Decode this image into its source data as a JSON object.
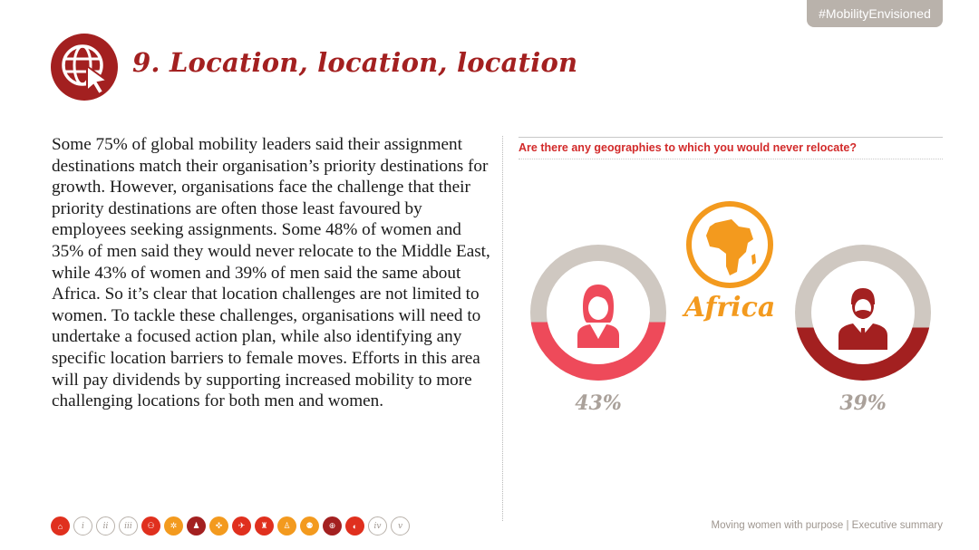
{
  "hashtag": "#MobilityEnvisioned",
  "page": {
    "title": "9. Location, location, location",
    "body": "Some 75% of global mobility leaders said their assignment destinations match their organisation’s priority destinations for growth. However, organisations face the challenge that their priority destinations are often those least favoured by employees seeking assignments. Some 48% of women and 35% of men said they would never relocate to the Middle East, while 43% of women and 39% of men said the same about Africa. So it’s clear that location challenges are not limited to women. To tackle these challenges, organisations will need to undertake a focused action plan, while also identifying any specific location barriers to female moves. Efforts in this area will pay dividends by supporting increased mobility to more challenging locations for both men and women."
  },
  "infographic": {
    "question": "Are there any geographies to which you would never relocate?",
    "region_label": "Africa",
    "women": {
      "percent_label": "43%",
      "value": 0.43,
      "color": "#ee4a5a",
      "track": "#cfc8c1"
    },
    "men": {
      "percent_label": "39%",
      "value": 0.39,
      "color": "#a32020",
      "track": "#cfc8c1"
    }
  },
  "nav": [
    {
      "name": "nav-home-icon",
      "style": "filled",
      "glyph": "⌂"
    },
    {
      "name": "nav-section-i",
      "style": "outline",
      "glyph": "i"
    },
    {
      "name": "nav-section-ii",
      "style": "outline",
      "glyph": "ii"
    },
    {
      "name": "nav-section-iii",
      "style": "outline",
      "glyph": "iii"
    },
    {
      "name": "nav-people-icon",
      "style": "filled",
      "glyph": "⚇"
    },
    {
      "name": "nav-gears-icon",
      "style": "orange",
      "glyph": "✲"
    },
    {
      "name": "nav-person-icon",
      "style": "dark",
      "glyph": "♟"
    },
    {
      "name": "nav-puzzle-icon",
      "style": "orange",
      "glyph": "✜"
    },
    {
      "name": "nav-plane-icon",
      "style": "filled",
      "glyph": "✈"
    },
    {
      "name": "nav-rocket-icon",
      "style": "filled",
      "glyph": "♜"
    },
    {
      "name": "nav-figure-icon",
      "style": "orange",
      "glyph": "♙"
    },
    {
      "name": "nav-group-icon",
      "style": "orange",
      "glyph": "⚉"
    },
    {
      "name": "nav-globe-icon",
      "style": "dark",
      "glyph": "⊕"
    },
    {
      "name": "nav-piggybank-icon",
      "style": "filled",
      "glyph": "◐"
    },
    {
      "name": "nav-section-iv",
      "style": "outline",
      "glyph": "iv"
    },
    {
      "name": "nav-section-v",
      "style": "outline",
      "glyph": "v"
    }
  ],
  "footer": "Moving women with purpose | Executive summary"
}
